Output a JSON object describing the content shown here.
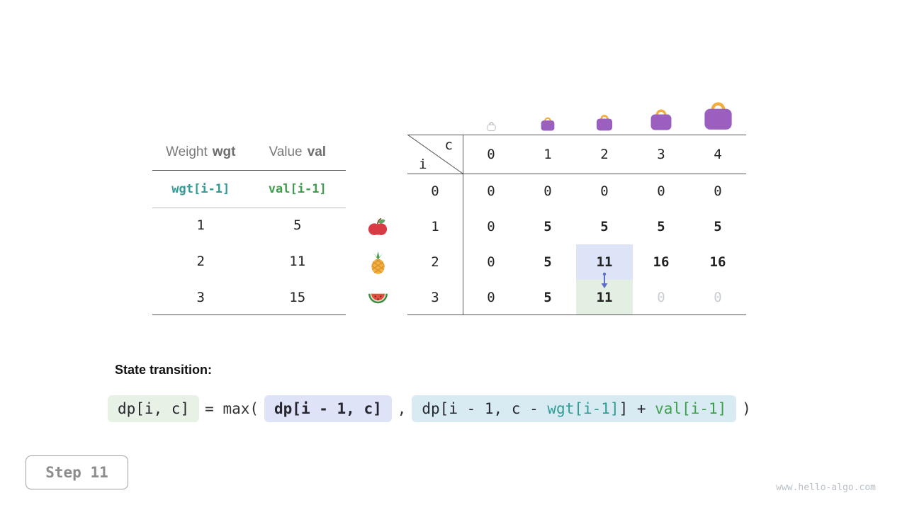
{
  "colors": {
    "teal": "#2f9c95",
    "green": "#3f9e4d",
    "highlight_blue": "#dee4f8",
    "highlight_green": "#e4efe4",
    "box_green": "#e8f1e6",
    "box_blue": "#dfe3f8",
    "box_cyan": "#d8ebf3",
    "arrow_blue": "#5f6ec4",
    "bag_purple": "#9b5fc0",
    "bag_handle": "#f2ad3e",
    "line_dark": "#555555",
    "line_light": "#b8b8b8",
    "muted_text": "#c9cdd2"
  },
  "items_table": {
    "header": {
      "weight_label": "Weight",
      "weight_code": "wgt",
      "value_label": "Value",
      "value_code": "val"
    },
    "formula_row": {
      "weight": "wgt[i-1]",
      "value": "val[i-1]"
    },
    "rows": [
      {
        "icon": "apple",
        "weight": "1",
        "value": "5"
      },
      {
        "icon": "pineapple",
        "weight": "2",
        "value": "11"
      },
      {
        "icon": "watermelon",
        "weight": "3",
        "value": "15"
      }
    ]
  },
  "dp_table": {
    "corner": {
      "col_var": "c",
      "row_var": "i"
    },
    "col_headers": [
      "0",
      "1",
      "2",
      "3",
      "4"
    ],
    "bags": [
      {
        "capacity": "0",
        "size": 15,
        "empty": true
      },
      {
        "capacity": "1",
        "size": 22,
        "empty": false
      },
      {
        "capacity": "2",
        "size": 26,
        "empty": false
      },
      {
        "capacity": "3",
        "size": 34,
        "empty": false
      },
      {
        "capacity": "4",
        "size": 45,
        "empty": false
      }
    ],
    "rows": [
      {
        "header": "0",
        "cells": [
          {
            "text": "0"
          },
          {
            "text": "0"
          },
          {
            "text": "0"
          },
          {
            "text": "0"
          },
          {
            "text": "0"
          }
        ]
      },
      {
        "header": "1",
        "cells": [
          {
            "text": "0"
          },
          {
            "text": "5",
            "bold": true
          },
          {
            "text": "5",
            "bold": true
          },
          {
            "text": "5",
            "bold": true
          },
          {
            "text": "5",
            "bold": true
          }
        ]
      },
      {
        "header": "2",
        "cells": [
          {
            "text": "0"
          },
          {
            "text": "5",
            "bold": true
          },
          {
            "text": "11",
            "bold": true,
            "highlight": "blue"
          },
          {
            "text": "16",
            "bold": true
          },
          {
            "text": "16",
            "bold": true
          }
        ]
      },
      {
        "header": "3",
        "cells": [
          {
            "text": "0"
          },
          {
            "text": "5",
            "bold": true
          },
          {
            "text": "11",
            "bold": true,
            "highlight": "green"
          },
          {
            "text": "0",
            "muted": true
          },
          {
            "text": "0",
            "muted": true
          }
        ]
      }
    ]
  },
  "transition": {
    "label": "State transition:",
    "lhs": "dp[i, c]",
    "op": "= max(",
    "arg1": "dp[i - 1, c]",
    "separator": ",",
    "arg2": {
      "part1": "dp[i - 1, c - ",
      "wgt": "wgt[i-1]",
      "part2": "] + ",
      "val": "val[i-1]"
    },
    "close": ")"
  },
  "step": {
    "label": "Step 11"
  },
  "watermark": "www.hello-algo.com"
}
